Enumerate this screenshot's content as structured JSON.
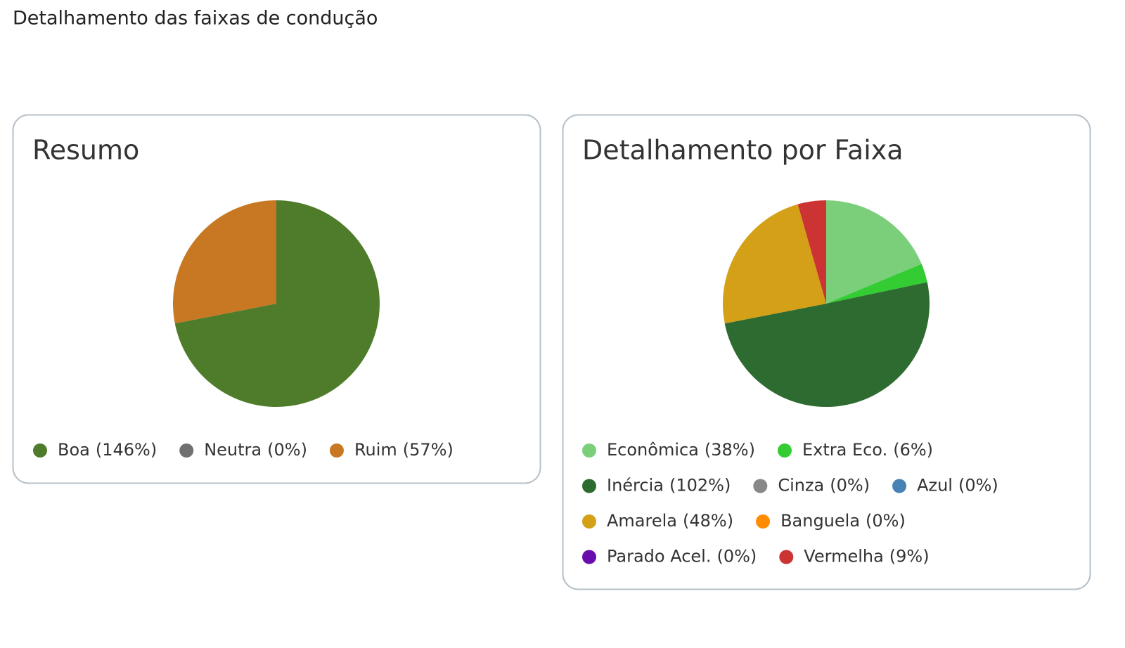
{
  "header": {
    "title": "Detalhamento das faixas de condução"
  },
  "chart_data": [
    {
      "type": "pie",
      "title": "Resumo",
      "categories": [
        "Boa",
        "Neutra",
        "Ruim"
      ],
      "values": [
        146,
        0,
        57
      ],
      "value_labels": [
        "(146%)",
        "(0%)",
        "(57%)"
      ],
      "colors": [
        "#4e7c2b",
        "#707070",
        "#c87722"
      ]
    },
    {
      "type": "pie",
      "title": "Detalhamento por Faixa",
      "categories": [
        "Econômica",
        "Extra Eco.",
        "Inércia",
        "Cinza",
        "Azul",
        "Amarela",
        "Banguela",
        "Parado Acel.",
        "Vermelha"
      ],
      "values": [
        38,
        6,
        102,
        0,
        0,
        48,
        0,
        0,
        9
      ],
      "value_labels": [
        "(38%)",
        "(6%)",
        "(102%)",
        "(0%)",
        "(0%)",
        "(48%)",
        "(0%)",
        "(0%)",
        "(9%)"
      ],
      "colors": [
        "#7bcf7b",
        "#33cc33",
        "#2e6b30",
        "#888888",
        "#4682b4",
        "#d4a017",
        "#ff8c00",
        "#6a0dad",
        "#cc3333"
      ]
    }
  ]
}
